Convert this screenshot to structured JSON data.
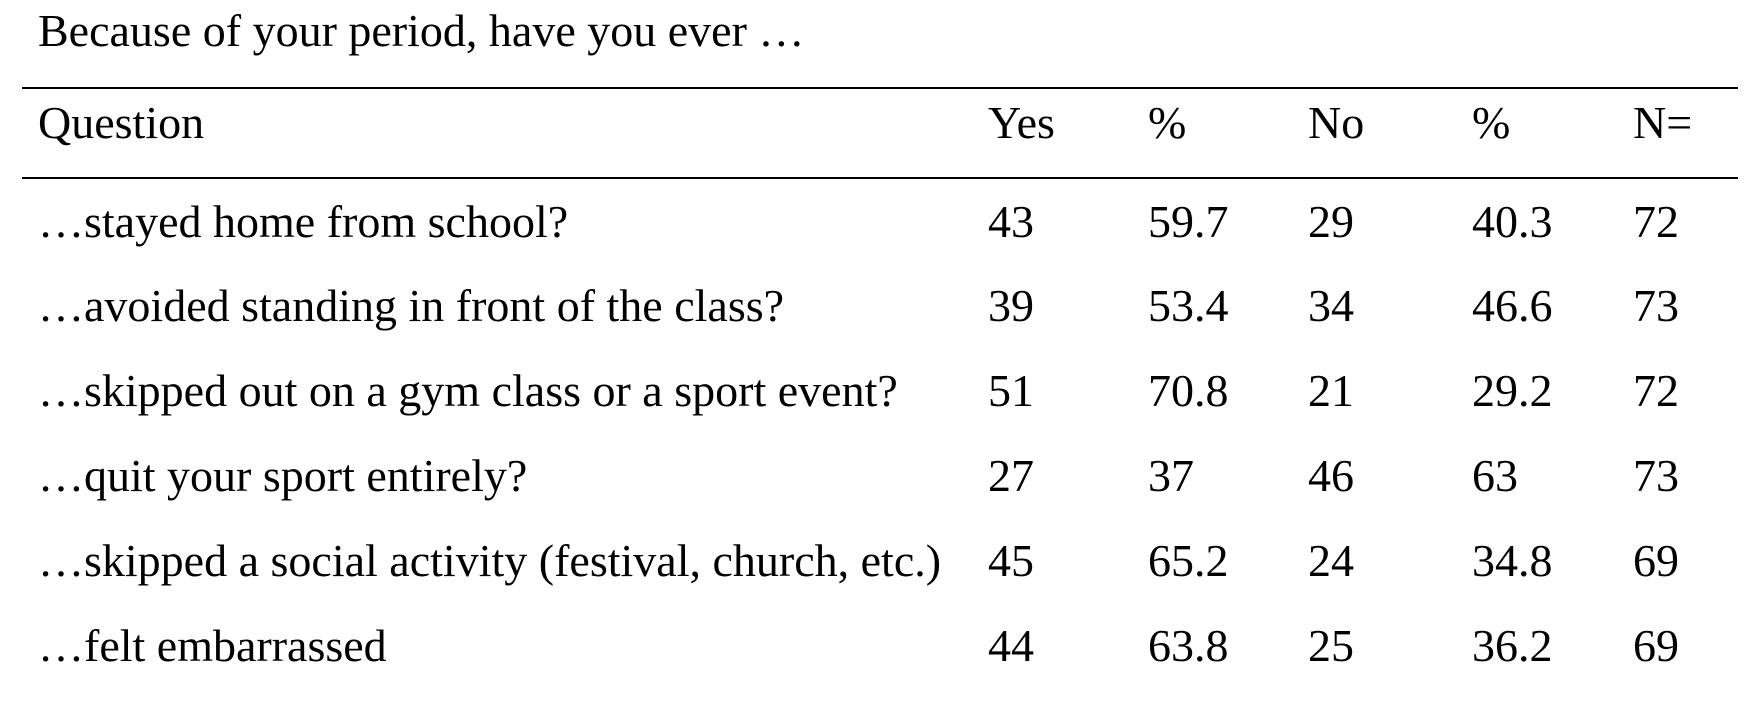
{
  "page": {
    "title": "Because of your period, have you ever …"
  },
  "table": {
    "headers": {
      "question": "Question",
      "yes": "Yes",
      "yes_pct": "%",
      "no": "No",
      "no_pct": "%",
      "n": "N="
    },
    "rows": [
      {
        "question": "…stayed home from school?",
        "yes": "43",
        "yes_pct": "59.7",
        "no": "29",
        "no_pct": "40.3",
        "n": "72"
      },
      {
        "question": "…avoided standing in front of the class?",
        "yes": "39",
        "yes_pct": "53.4",
        "no": "34",
        "no_pct": "46.6",
        "n": "73"
      },
      {
        "question": "…skipped out on a gym class or a sport event?",
        "yes": "51",
        "yes_pct": "70.8",
        "no": "21",
        "no_pct": "29.2",
        "n": "72"
      },
      {
        "question": "…quit your sport entirely?",
        "yes": "27",
        "yes_pct": "37",
        "no": "46",
        "no_pct": "63",
        "n": "73"
      },
      {
        "question": "…skipped a social activity (festival, church, etc.)",
        "yes": "45",
        "yes_pct": "65.2",
        "no": "24",
        "no_pct": "34.8",
        "n": "69"
      },
      {
        "question": "…felt embarrassed",
        "yes": "44",
        "yes_pct": "63.8",
        "no": "25",
        "no_pct": "36.2",
        "n": "69"
      }
    ],
    "style": {
      "text_color": "#000000",
      "background_color": "#ffffff",
      "rule_color": "#000000"
    }
  }
}
